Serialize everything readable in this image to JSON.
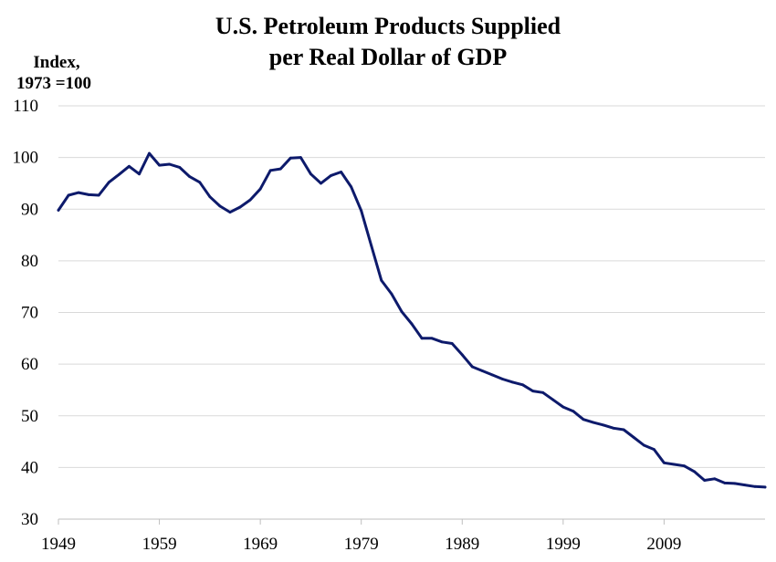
{
  "chart_data": {
    "type": "line",
    "title": [
      "U.S. Petroleum Products Supplied",
      "per Real Dollar of GDP"
    ],
    "ylabel": [
      "Index,",
      "1973 =100"
    ],
    "xlabel": "",
    "ylim": [
      30,
      110
    ],
    "yticks": [
      30,
      40,
      50,
      60,
      70,
      80,
      90,
      100,
      110
    ],
    "xlim": [
      1949,
      2019
    ],
    "xticks": [
      1949,
      1959,
      1969,
      1979,
      1989,
      1999,
      2009
    ],
    "grid": true,
    "legend": "none",
    "series": [
      {
        "color": "#0d1a6b",
        "x": [
          1949,
          1950,
          1951,
          1952,
          1953,
          1954,
          1955,
          1956,
          1957,
          1958,
          1959,
          1960,
          1961,
          1962,
          1963,
          1964,
          1965,
          1966,
          1967,
          1968,
          1969,
          1970,
          1971,
          1972,
          1973,
          1974,
          1975,
          1976,
          1977,
          1978,
          1979,
          1980,
          1981,
          1982,
          1983,
          1984,
          1985,
          1986,
          1987,
          1988,
          1989,
          1990,
          1991,
          1992,
          1993,
          1994,
          1995,
          1996,
          1997,
          1998,
          1999,
          2000,
          2001,
          2002,
          2003,
          2004,
          2005,
          2006,
          2007,
          2008,
          2009,
          2010,
          2011,
          2012,
          2013,
          2014,
          2015,
          2016,
          2017,
          2018,
          2019
        ],
        "values": [
          89.8,
          92.7,
          93.2,
          92.8,
          92.7,
          95.2,
          96.7,
          98.3,
          96.8,
          100.8,
          98.5,
          98.7,
          98.1,
          96.3,
          95.2,
          92.4,
          90.6,
          89.4,
          90.4,
          91.8,
          93.9,
          97.5,
          97.8,
          99.9,
          100.0,
          96.8,
          95.0,
          96.5,
          97.2,
          94.3,
          89.7,
          82.9,
          76.2,
          73.6,
          70.2,
          67.8,
          65.0,
          65.0,
          64.3,
          64.0,
          61.8,
          59.5,
          58.7,
          57.9,
          57.1,
          56.5,
          56.0,
          54.8,
          54.5,
          53.1,
          51.7,
          50.9,
          49.3,
          48.7,
          48.2,
          47.6,
          47.3,
          45.8,
          44.3,
          43.5,
          40.9,
          40.6,
          40.3,
          39.2,
          37.5,
          37.8,
          37.0,
          36.9,
          36.6,
          36.3,
          36.2
        ]
      }
    ]
  }
}
